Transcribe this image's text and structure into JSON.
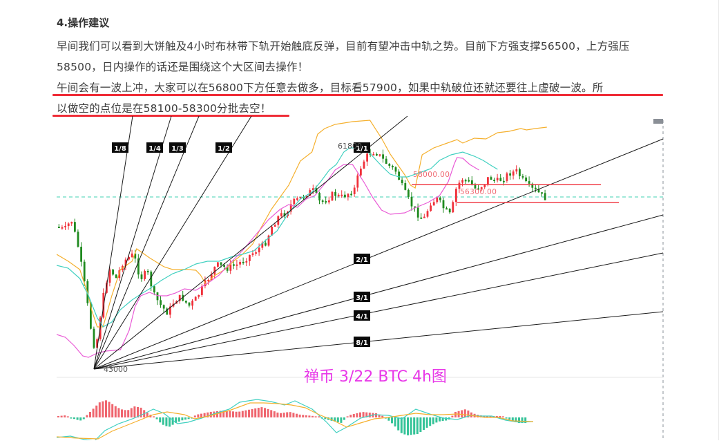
{
  "article": {
    "heading": "4.操作建议",
    "paragraph1": "早间我们可以看到大饼触及4小时布林带下轨开始触底反弹，目前有望冲击中轨之势。目前下方强支撑56500，上方强压58500，日内操作的话还是围绕这个大区间去操作！",
    "paragraph2_line1": "午间会有一波上冲，大家可以在56800下方任意去做多，目标看57900，如果中轨破位还就还要往上虚破一波。所",
    "paragraph2_line2": "以做空的点位是在58100-58300分批去空！"
  },
  "colors": {
    "bull": "#f0303a",
    "bear": "#1f8a1f",
    "boll_upper": "#f5b02e",
    "boll_mid": "#3fd0c0",
    "boll_lower": "#e95bd6",
    "underline": "#ef2c37",
    "caption": "#e838e8",
    "macd_pos": "#ec4a55",
    "macd_neg": "#12b886"
  },
  "chart_data": {
    "type": "line",
    "title": "禅币  3/22 BTC 4h图",
    "subject": "BTC 4h candlestick with Bollinger Bands, Gann fan and MACD",
    "price_labels": {
      "high": "61800",
      "low": "43000"
    },
    "horizontal_levels": [
      {
        "label": "58000.00",
        "value": 58000
      },
      {
        "label": "56300.00",
        "value": 56300
      }
    ],
    "gann_fan": {
      "origin_price": 43000,
      "angles": [
        "1/8",
        "1/4",
        "1/3",
        "1/2",
        "1/1",
        "2/1",
        "3/1",
        "4/1",
        "8/1"
      ]
    },
    "series": [
      {
        "name": "Bollinger Upper",
        "color": "#f5b02e"
      },
      {
        "name": "Bollinger Middle",
        "color": "#3fd0c0"
      },
      {
        "name": "Bollinger Lower",
        "color": "#e95bd6"
      },
      {
        "name": "MACD DIF",
        "color": "#3fd0c0"
      },
      {
        "name": "MACD DEA",
        "color": "#f5b02e"
      }
    ],
    "support": 56500,
    "resistance": 58500,
    "long_entry_below": 56800,
    "long_target": 57900,
    "short_zone": "58100-58300"
  },
  "caption": "禅币  3/22 BTC 4h图"
}
